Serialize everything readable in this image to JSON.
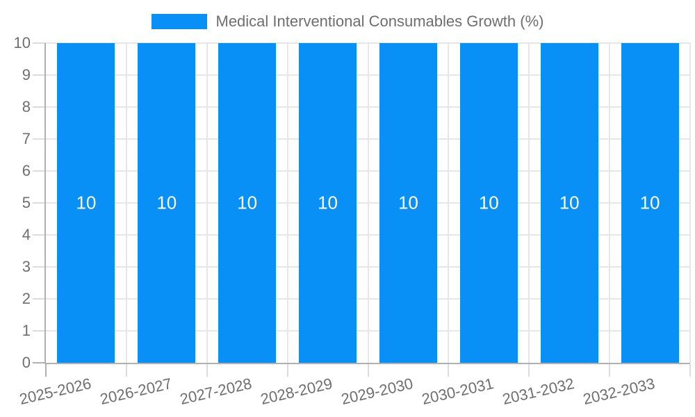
{
  "legend": {
    "label": "Medical Interventional Consumables Growth (%)"
  },
  "colors": {
    "bar": "#0990f7",
    "grid": "#e6e6e6",
    "tick": "#dcdcdc",
    "axis": "#b0b0b0",
    "text": "#6e6e6e",
    "bar_label": "#ffffff",
    "background": "#ffffff"
  },
  "chart_data": {
    "type": "bar",
    "title": "Medical Interventional Consumables Growth (%)",
    "categories": [
      "2025-2026",
      "2026-2027",
      "2027-2028",
      "2028-2029",
      "2029-2030",
      "2030-2031",
      "2031-2032",
      "2032-2033"
    ],
    "values": [
      10,
      10,
      10,
      10,
      10,
      10,
      10,
      10
    ],
    "data_labels": [
      "10",
      "10",
      "10",
      "10",
      "10",
      "10",
      "10",
      "10"
    ],
    "xlabel": "",
    "ylabel": "",
    "ylim": [
      0,
      10
    ],
    "yticks": [
      0,
      1,
      2,
      3,
      4,
      5,
      6,
      7,
      8,
      9,
      10
    ],
    "grid": true,
    "legend_position": "top",
    "x_label_rotation_deg": -13
  }
}
